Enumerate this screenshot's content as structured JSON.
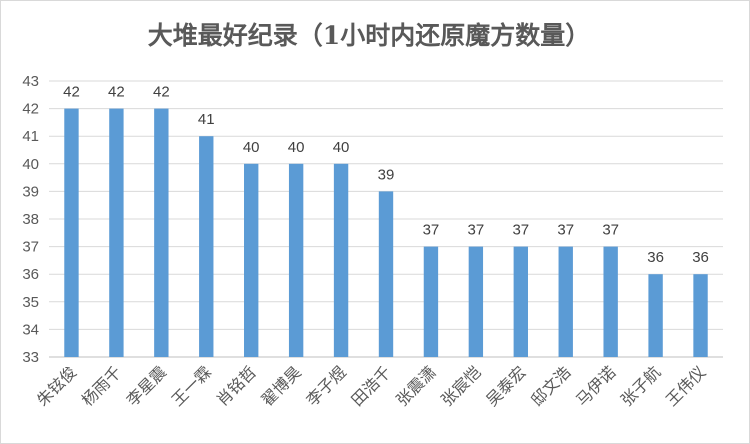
{
  "chart_data": {
    "type": "bar",
    "title": "大堆最好纪录（1小时内还原魔方数量）",
    "xlabel": "",
    "ylabel": "",
    "categories": [
      "朱铉俊",
      "杨雨千",
      "李星震",
      "王一霖",
      "肖铭哲",
      "翟博昊",
      "李子煜",
      "田浩千",
      "张震潇",
      "张宸恺",
      "吴泰宏",
      "邸文浩",
      "马伊诺",
      "张子航",
      "王伟仪"
    ],
    "values": [
      42,
      42,
      42,
      41,
      40,
      40,
      40,
      39,
      37,
      37,
      37,
      37,
      37,
      36,
      36
    ],
    "ylim": [
      33,
      43
    ],
    "yticks": [
      33,
      34,
      35,
      36,
      37,
      38,
      39,
      40,
      41,
      42,
      43
    ],
    "grid": true,
    "legend": "none",
    "bar_color": "#5b9bd5",
    "data_labels": true
  }
}
